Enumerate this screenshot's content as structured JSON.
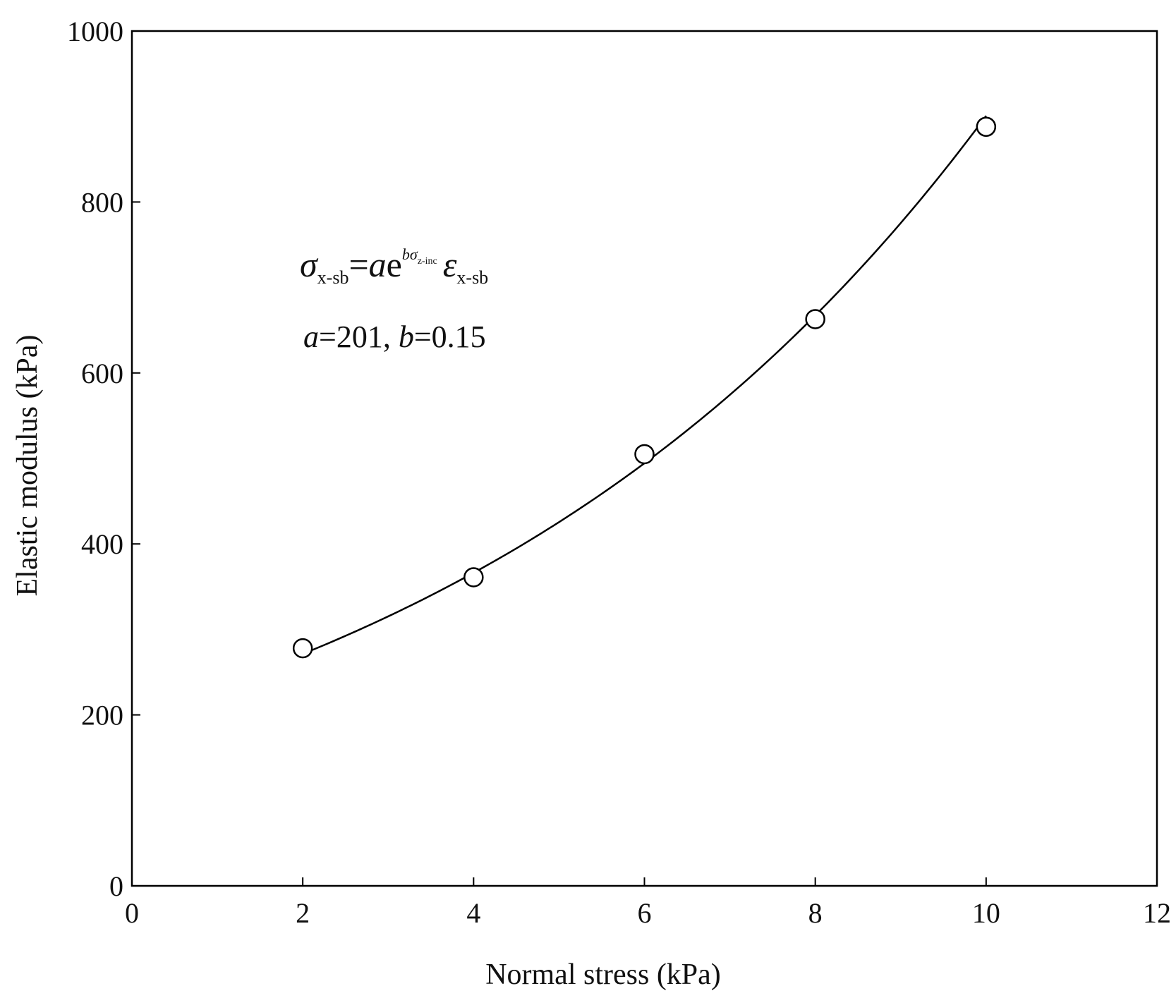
{
  "chart_data": {
    "type": "scatter",
    "title": "",
    "xlabel": "Normal stress (kPa)",
    "ylabel": "Elastic modulus (kPa)",
    "xlim": [
      0,
      12
    ],
    "ylim": [
      0,
      1000
    ],
    "xticks": [
      0,
      2,
      4,
      6,
      8,
      10,
      12
    ],
    "yticks": [
      0,
      200,
      400,
      600,
      800,
      1000
    ],
    "grid": false,
    "series": [
      {
        "marker": "open-circle",
        "color": "#000000",
        "points": [
          {
            "x": 2,
            "y": 278
          },
          {
            "x": 4,
            "y": 361
          },
          {
            "x": 6,
            "y": 505
          },
          {
            "x": 8,
            "y": 663
          },
          {
            "x": 10,
            "y": 888
          }
        ]
      }
    ],
    "fit": {
      "form": "y = A*exp(B*x)",
      "A": 201,
      "B": 0.15,
      "x_range": [
        2,
        10
      ],
      "color": "#000000"
    },
    "annotations": {
      "equation": {
        "lhs_symbol": "σ",
        "lhs_subscript": "x-sb",
        "equals": "=",
        "coef": "a",
        "exp_base": "e",
        "exponent_coef": "b",
        "exponent_symbol": "σ",
        "exponent_subscript": "z-inc",
        "rhs_symbol": "ε",
        "rhs_subscript": "x-sb"
      },
      "params": {
        "a_name": "a",
        "a_eq": "=201, ",
        "b_name": "b",
        "b_eq": "=0.15"
      }
    }
  }
}
